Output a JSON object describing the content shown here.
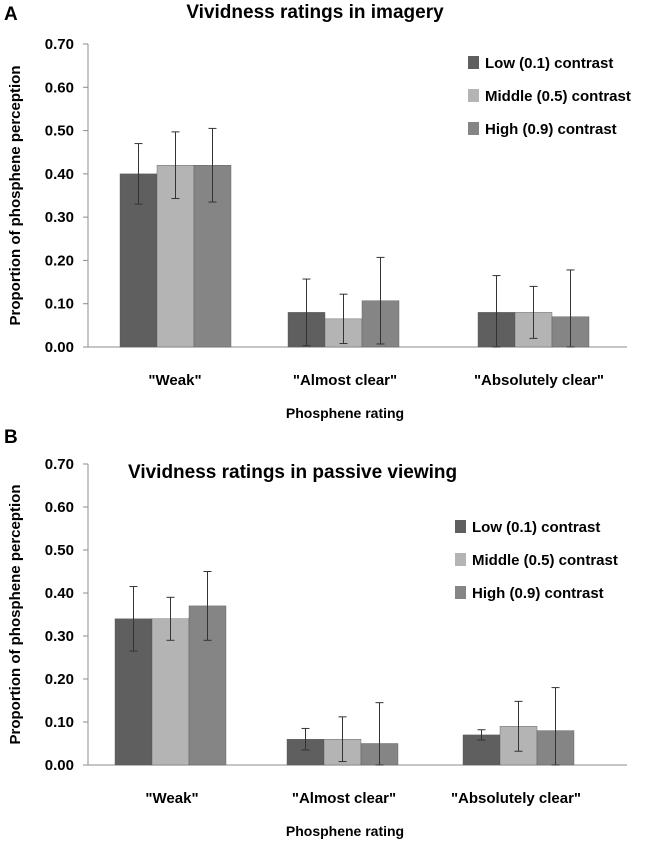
{
  "colors": {
    "low": "#5f5f5f",
    "middle": "#b4b4b4",
    "high": "#858585",
    "axis": "#8c8c8c",
    "error": "#333333"
  },
  "chart_data": [
    {
      "panel_label": "A",
      "type": "bar",
      "title": "Vividness ratings in imagery",
      "xlabel": "Phosphene rating",
      "ylabel": "Proportion of phosphene perception",
      "ylim": [
        0,
        0.7
      ],
      "yticks": [
        "0.00",
        "0.10",
        "0.20",
        "0.30",
        "0.40",
        "0.50",
        "0.60",
        "0.70"
      ],
      "categories": [
        "\"Weak\"",
        "\"Almost clear\"",
        "\"Absolutely clear\""
      ],
      "legend_position": "top-right",
      "series": [
        {
          "name": "Low (0.1) contrast",
          "color": "#5f5f5f",
          "values": [
            0.4,
            0.08,
            0.08
          ],
          "errors": [
            0.07,
            0.077,
            0.085
          ]
        },
        {
          "name": "Middle (0.5) contrast",
          "color": "#b4b4b4",
          "values": [
            0.42,
            0.065,
            0.08
          ],
          "errors": [
            0.077,
            0.057,
            0.06
          ]
        },
        {
          "name": "High (0.9) contrast",
          "color": "#858585",
          "values": [
            0.42,
            0.107,
            0.07
          ],
          "errors": [
            0.085,
            0.1,
            0.108
          ]
        }
      ]
    },
    {
      "panel_label": "B",
      "type": "bar",
      "title": "Vividness ratings in passive viewing",
      "xlabel": "Phosphene rating",
      "ylabel": "Proportion of phosphene perception",
      "ylim": [
        0,
        0.7
      ],
      "yticks": [
        "0.00",
        "0.10",
        "0.20",
        "0.30",
        "0.40",
        "0.50",
        "0.60",
        "0.70"
      ],
      "categories": [
        "\"Weak\"",
        "\"Almost clear\"",
        "\"Absolutely clear\""
      ],
      "legend_position": "right",
      "series": [
        {
          "name": "Low (0.1) contrast",
          "color": "#5f5f5f",
          "values": [
            0.34,
            0.06,
            0.07
          ],
          "errors": [
            0.075,
            0.025,
            0.012
          ]
        },
        {
          "name": "Middle (0.5) contrast",
          "color": "#b4b4b4",
          "values": [
            0.34,
            0.06,
            0.09
          ],
          "errors": [
            0.05,
            0.052,
            0.058
          ]
        },
        {
          "name": "High (0.9) contrast",
          "color": "#858585",
          "values": [
            0.37,
            0.05,
            0.08
          ],
          "errors": [
            0.08,
            0.095,
            0.1
          ]
        }
      ]
    }
  ]
}
